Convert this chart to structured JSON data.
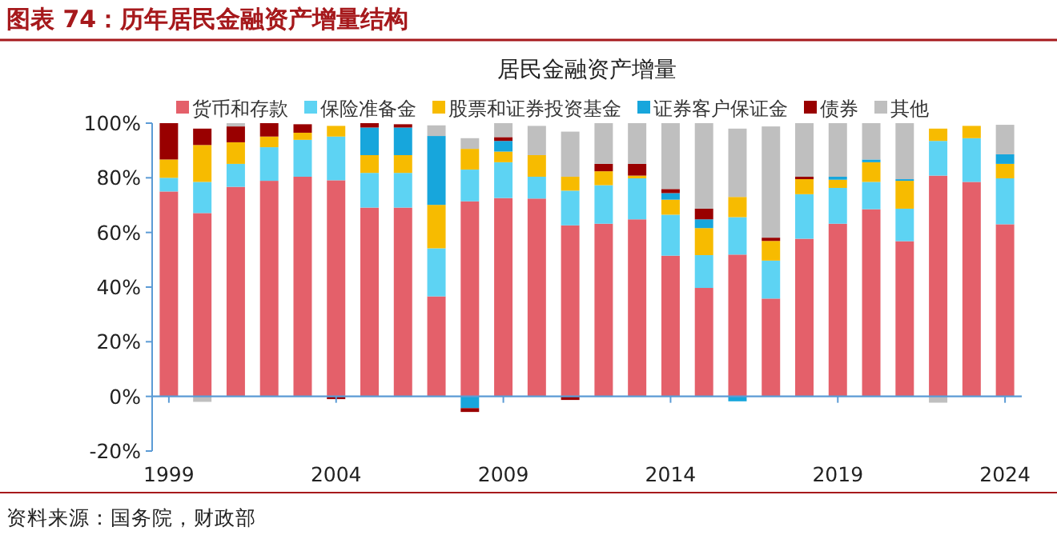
{
  "chart_data": {
    "type": "bar",
    "stacked": true,
    "title": "图表 74：历年居民金融资产增量结构",
    "subtitle": "居民金融资产增量",
    "categories": [
      "1999",
      null,
      null,
      null,
      null,
      "2004",
      null,
      null,
      null,
      null,
      "2009",
      null,
      null,
      null,
      null,
      "2014",
      null,
      null,
      null,
      null,
      "2019",
      null,
      null,
      null,
      null,
      "2024"
    ],
    "series": [
      {
        "name": "货币和存款",
        "color": "#e4606a",
        "values": [
          75,
          67.1,
          76.7,
          78.9,
          80.4,
          79.1,
          69.1,
          69.1,
          36.6,
          71.4,
          72.6,
          72.4,
          62.6,
          63.2,
          64.8,
          51.5,
          39.7,
          51.9,
          35.8,
          57.7,
          63.2,
          68.5,
          56.8,
          80.8,
          78.5,
          63
        ]
      },
      {
        "name": "保险准备金",
        "color": "#5dd3f3",
        "values": [
          5,
          11.4,
          8.4,
          12.3,
          13.5,
          16,
          12.7,
          12.7,
          17.6,
          11.6,
          13.1,
          8,
          12.7,
          14.1,
          15,
          15,
          12,
          13.7,
          13.9,
          16.3,
          13.1,
          10,
          11.9,
          12.7,
          16,
          16.8
        ]
      },
      {
        "name": "股票和证券投资基金",
        "color": "#f7bb00",
        "values": [
          6.7,
          13.5,
          7.9,
          3.9,
          2.6,
          3.9,
          6.5,
          6.5,
          15.9,
          7.6,
          3.9,
          7.9,
          5.1,
          5.1,
          1,
          5.5,
          9.9,
          7.4,
          7.2,
          5.5,
          3,
          7.2,
          10.2,
          4.5,
          4.5,
          5.3
        ]
      },
      {
        "name": "证券客户保证金",
        "color": "#17a6dc",
        "values": [
          null,
          null,
          null,
          null,
          null,
          null,
          10.1,
          10.1,
          25.2,
          -4.3,
          3.9,
          null,
          null,
          null,
          null,
          2.4,
          3.2,
          -1.8,
          null,
          null,
          1.1,
          1,
          0.6,
          null,
          null,
          3.5
        ]
      },
      {
        "name": "债券",
        "color": "#990000",
        "values": [
          13.3,
          6,
          5.8,
          4.9,
          3.1,
          -1,
          1.6,
          1.2,
          null,
          -1.4,
          1.4,
          null,
          -1.3,
          2.7,
          4.3,
          1.5,
          3.9,
          null,
          1.2,
          0.9,
          null,
          null,
          null,
          null,
          null,
          null
        ]
      },
      {
        "name": "其他",
        "color": "#bfbfbf",
        "values": [
          null,
          -2,
          1.2,
          null,
          null,
          null,
          null,
          null,
          3.9,
          3.9,
          5.1,
          10.7,
          16.5,
          14.9,
          14.9,
          24.1,
          31.3,
          25,
          40.7,
          19.6,
          19.6,
          13.3,
          20.5,
          -2.3,
          null,
          10.8
        ]
      }
    ],
    "ylim": [
      -20,
      100
    ],
    "yticks": [
      {
        "value": -20,
        "label": "-20%"
      },
      {
        "value": 0,
        "label": "0%"
      },
      {
        "value": 20,
        "label": "20%"
      },
      {
        "value": 40,
        "label": "40%"
      },
      {
        "value": 60,
        "label": "60%"
      },
      {
        "value": 80,
        "label": "80%"
      },
      {
        "value": 100,
        "label": "100%"
      }
    ],
    "grid": false,
    "legend": "top",
    "ref_lines": [
      {
        "axis": "y",
        "value": 0,
        "color": "#5b9bd5"
      }
    ],
    "annotations": [
      "资料来源：国务院，财政部"
    ]
  }
}
